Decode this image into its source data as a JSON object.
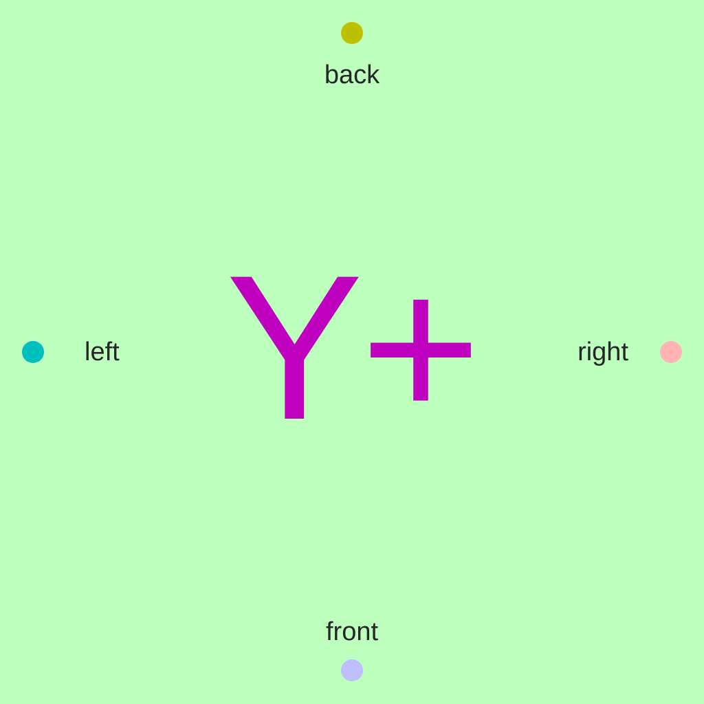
{
  "background_color": "#bdffbd",
  "center": {
    "text": "Y+",
    "color": "#bf00bf"
  },
  "directions": {
    "back": {
      "label": "back",
      "dot_color": "#bfbf00"
    },
    "front": {
      "label": "front",
      "dot_color": "#bfbfff"
    },
    "left": {
      "label": "left",
      "dot_color": "#00bfbf"
    },
    "right": {
      "label": "right",
      "dot_color": "#ffb3b3"
    }
  }
}
